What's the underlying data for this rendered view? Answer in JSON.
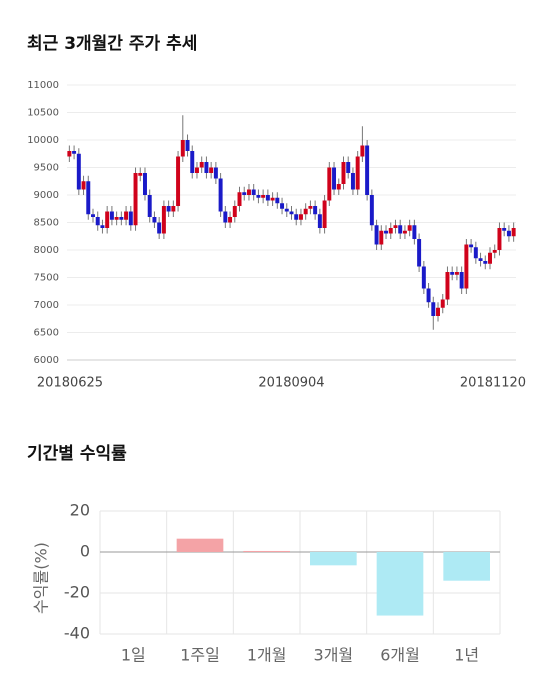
{
  "chart_data": [
    {
      "type": "candlestick",
      "title": "최근 3개월간 주가 추세",
      "categories": [
        "20180625",
        null,
        null,
        null,
        null,
        null,
        null,
        null,
        null,
        null,
        null,
        null,
        null,
        null,
        null,
        null,
        null,
        null,
        null,
        null,
        null,
        null,
        null,
        null,
        null,
        null,
        null,
        null,
        null,
        null,
        null,
        null,
        null,
        null,
        null,
        null,
        null,
        null,
        null,
        null,
        null,
        null,
        null,
        null,
        null,
        null,
        null,
        "20180904",
        null,
        null,
        null,
        null,
        null,
        null,
        null,
        null,
        null,
        null,
        null,
        null,
        null,
        null,
        null,
        null,
        null,
        null,
        null,
        null,
        null,
        null,
        null,
        null,
        null,
        null,
        null,
        null,
        null,
        null,
        null,
        null,
        null,
        null,
        null,
        null,
        null,
        null,
        null,
        null,
        null,
        null,
        null,
        null,
        null,
        null,
        "20181120"
      ],
      "open": [
        9700,
        9800,
        9750,
        9100,
        9250,
        8650,
        8600,
        8450,
        8400,
        8700,
        8550,
        8600,
        8550,
        8700,
        8450,
        9350,
        9400,
        9000,
        8600,
        8500,
        8300,
        8800,
        8700,
        8800,
        9700,
        10000,
        9800,
        9400,
        9500,
        9600,
        9400,
        9500,
        9300,
        8700,
        8500,
        8600,
        8800,
        9050,
        9000,
        9100,
        9000,
        8950,
        9000,
        8900,
        8950,
        8850,
        8750,
        8700,
        8650,
        8550,
        8650,
        8750,
        8800,
        8650,
        8400,
        8900,
        9500,
        9100,
        9200,
        9600,
        9400,
        9100,
        9700,
        9900,
        9000,
        8450,
        8100,
        8350,
        8300,
        8400,
        8450,
        8300,
        8350,
        8450,
        8200,
        7700,
        7300,
        7050,
        6800,
        6950,
        7100,
        7600,
        7550,
        7600,
        7300,
        8100,
        8050,
        7850,
        7800,
        7750,
        7950,
        8000,
        8400,
        8350,
        8250
      ],
      "high": [
        9900,
        9900,
        9850,
        9350,
        9350,
        8750,
        8700,
        8550,
        8800,
        8800,
        8700,
        8700,
        8800,
        8800,
        9500,
        9500,
        9500,
        9100,
        8700,
        8600,
        8900,
        8900,
        8900,
        9800,
        10450,
        10100,
        9900,
        9600,
        9700,
        9700,
        9600,
        9600,
        9400,
        8800,
        8700,
        8900,
        9150,
        9150,
        9200,
        9200,
        9100,
        9100,
        9100,
        9050,
        9050,
        8950,
        8850,
        8800,
        8750,
        8750,
        8850,
        8900,
        8900,
        8750,
        9000,
        9600,
        9600,
        9300,
        9700,
        9700,
        9500,
        9800,
        10250,
        10000,
        9100,
        8550,
        8450,
        8450,
        8500,
        8550,
        8550,
        8450,
        8550,
        8550,
        8300,
        7800,
        7400,
        7150,
        7050,
        7200,
        7700,
        7700,
        7700,
        7700,
        8200,
        8200,
        8150,
        7950,
        7900,
        8050,
        8100,
        8500,
        8500,
        8450,
        8500
      ],
      "low": [
        9600,
        9650,
        9000,
        9000,
        8550,
        8500,
        8350,
        8300,
        8300,
        8450,
        8450,
        8450,
        8450,
        8350,
        8350,
        9250,
        8900,
        8500,
        8400,
        8200,
        8200,
        8600,
        8600,
        8700,
        9600,
        9700,
        9300,
        9300,
        9400,
        9300,
        9300,
        9200,
        8600,
        8400,
        8400,
        8500,
        8700,
        8900,
        8900,
        8900,
        8850,
        8850,
        8800,
        8800,
        8750,
        8650,
        8600,
        8550,
        8450,
        8450,
        8550,
        8650,
        8550,
        8300,
        8300,
        8800,
        9000,
        9000,
        9100,
        9300,
        9000,
        9000,
        9600,
        8900,
        8350,
        8000,
        8000,
        8200,
        8200,
        8300,
        8200,
        8200,
        8250,
        8100,
        7600,
        7200,
        6950,
        6550,
        6700,
        6850,
        7000,
        7450,
        7450,
        7200,
        7200,
        7950,
        7750,
        7700,
        7650,
        7650,
        7850,
        7900,
        8250,
        8150,
        8150
      ],
      "close": [
        9800,
        9750,
        9100,
        9250,
        8650,
        8600,
        8450,
        8400,
        8700,
        8550,
        8600,
        8550,
        8700,
        8450,
        9400,
        9400,
        9000,
        8600,
        8500,
        8300,
        8800,
        8700,
        8800,
        9700,
        10000,
        9800,
        9400,
        9500,
        9600,
        9400,
        9500,
        9300,
        8700,
        8500,
        8600,
        8800,
        9050,
        9000,
        9100,
        9000,
        8950,
        9000,
        8900,
        8950,
        8850,
        8750,
        8700,
        8650,
        8550,
        8650,
        8750,
        8800,
        8650,
        8400,
        8900,
        9500,
        9100,
        9200,
        9600,
        9400,
        9100,
        9700,
        9900,
        9000,
        8450,
        8100,
        8350,
        8300,
        8400,
        8450,
        8300,
        8350,
        8450,
        8200,
        7700,
        7300,
        7050,
        6800,
        6950,
        7100,
        7600,
        7550,
        7600,
        7300,
        8100,
        8050,
        7850,
        7800,
        7750,
        7950,
        8000,
        8400,
        8350,
        8250,
        8400
      ],
      "up_color": "#d0021b",
      "down_color": "#1a1ac8",
      "ylim": [
        6000,
        11000
      ],
      "yticks": [
        6000,
        6500,
        7000,
        7500,
        8000,
        8500,
        9000,
        9500,
        10000,
        10500,
        11000
      ],
      "grid": true
    },
    {
      "type": "bar",
      "title": "기간별 수익률",
      "ylabel": "수익률(%)",
      "categories": [
        "1일",
        "1주일",
        "1개월",
        "3개월",
        "6개월",
        "1년"
      ],
      "values": [
        0,
        6.5,
        0.5,
        -6.5,
        -31,
        -14
      ],
      "positive_color": "#f4a3a6",
      "negative_color": "#aeeaf4",
      "ylim": [
        -40,
        20
      ],
      "yticks": [
        -40,
        -20,
        0,
        20
      ],
      "grid": true
    }
  ]
}
